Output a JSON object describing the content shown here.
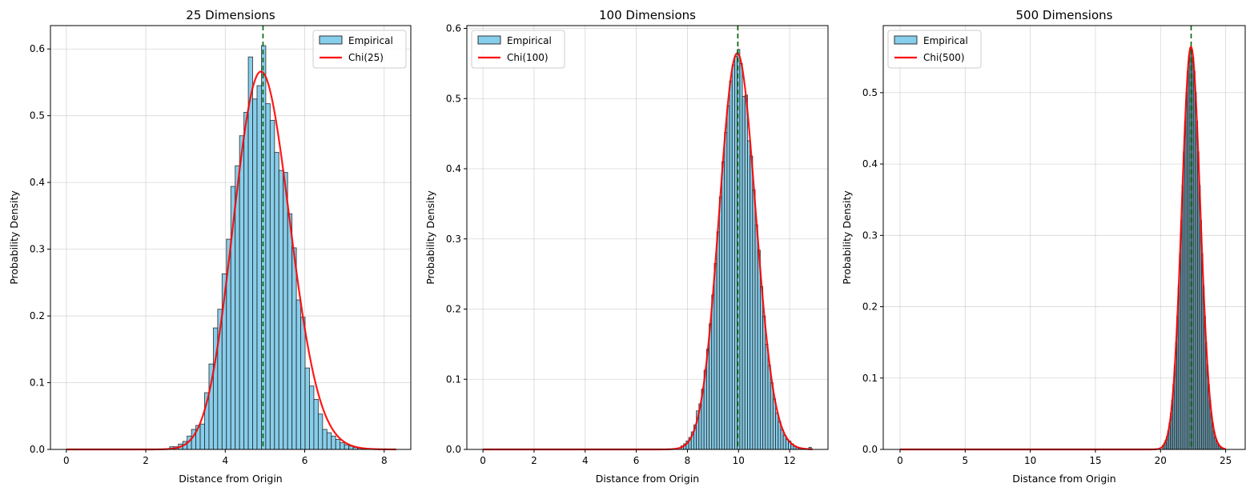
{
  "chart_data": [
    {
      "type": "bar",
      "title": "25 Dimensions",
      "xlabel": "Distance from Origin",
      "ylabel": "Probability Density",
      "xlim": [
        -0.4,
        8.67
      ],
      "ylim": [
        0,
        0.635
      ],
      "xticks": [
        0,
        2,
        4,
        6,
        8
      ],
      "yticks": [
        0.0,
        0.1,
        0.2,
        0.3,
        0.4,
        0.5,
        0.6
      ],
      "grid": true,
      "legend": {
        "placement": "top-right",
        "entries": [
          "Empirical",
          "Chi(25)"
        ]
      },
      "histogram": {
        "bin_start": 2.6,
        "bin_width": 0.11,
        "values": [
          0.004,
          0.004,
          0.008,
          0.012,
          0.02,
          0.03,
          0.036,
          0.038,
          0.085,
          0.128,
          0.182,
          0.21,
          0.263,
          0.315,
          0.394,
          0.425,
          0.47,
          0.505,
          0.588,
          0.525,
          0.545,
          0.605,
          0.518,
          0.493,
          0.445,
          0.418,
          0.415,
          0.353,
          0.302,
          0.224,
          0.198,
          0.122,
          0.095,
          0.075,
          0.053,
          0.03,
          0.025,
          0.02,
          0.015,
          0.01,
          0.007,
          0.005,
          0.003,
          0.002,
          0.001
        ]
      },
      "curve": {
        "name": "Chi(25)",
        "df": 25,
        "x_range": [
          0,
          8.3
        ]
      },
      "mean_line": 4.95,
      "colors": {
        "bar": "#87CEEB",
        "curve": "#FF0000",
        "mean_line": "#006400"
      }
    },
    {
      "type": "bar",
      "title": "100 Dimensions",
      "xlabel": "Distance from Origin",
      "ylabel": "Probability Density",
      "xlim": [
        -0.63,
        13.5
      ],
      "ylim": [
        0,
        0.604
      ],
      "xticks": [
        0,
        2,
        4,
        6,
        8,
        10,
        12
      ],
      "yticks": [
        0.0,
        0.1,
        0.2,
        0.3,
        0.4,
        0.5,
        0.6
      ],
      "grid": true,
      "legend": {
        "placement": "top-left",
        "entries": [
          "Empirical",
          "Chi(100)"
        ]
      },
      "histogram": {
        "bin_start": 7.75,
        "bin_width": 0.1,
        "values": [
          0.005,
          0.008,
          0.012,
          0.017,
          0.025,
          0.035,
          0.055,
          0.065,
          0.086,
          0.113,
          0.143,
          0.179,
          0.22,
          0.265,
          0.31,
          0.36,
          0.41,
          0.452,
          0.49,
          0.525,
          0.548,
          0.56,
          0.57,
          0.55,
          0.503,
          0.505,
          0.44,
          0.418,
          0.37,
          0.32,
          0.284,
          0.232,
          0.19,
          0.15,
          0.12,
          0.095,
          0.072,
          0.052,
          0.04,
          0.028,
          0.02,
          0.014,
          0.012,
          0.008,
          0.005,
          0.003,
          0.002,
          0.001,
          0.001,
          0.0,
          0.003
        ]
      },
      "curve": {
        "name": "Chi(100)",
        "df": 100,
        "x_range": [
          0,
          12.9
        ]
      },
      "mean_line": 9.97,
      "colors": {
        "bar": "#87CEEB",
        "curve": "#FF0000",
        "mean_line": "#006400"
      }
    },
    {
      "type": "bar",
      "title": "500 Dimensions",
      "xlabel": "Distance from Origin",
      "ylabel": "Probability Density",
      "xlim": [
        -1.29,
        26.5
      ],
      "ylim": [
        0,
        0.594
      ],
      "xticks": [
        0,
        5,
        10,
        15,
        20,
        25
      ],
      "yticks": [
        0.0,
        0.1,
        0.2,
        0.3,
        0.4,
        0.5
      ],
      "grid": true,
      "legend": {
        "placement": "top-left",
        "entries": [
          "Empirical",
          "Chi(500)"
        ]
      },
      "histogram": {
        "bin_start": 20.15,
        "bin_width": 0.1,
        "values": [
          0.006,
          0.009,
          0.013,
          0.018,
          0.026,
          0.037,
          0.051,
          0.069,
          0.091,
          0.118,
          0.15,
          0.187,
          0.229,
          0.274,
          0.321,
          0.37,
          0.417,
          0.46,
          0.5,
          0.53,
          0.552,
          0.563,
          0.56,
          0.55,
          0.53,
          0.5,
          0.46,
          0.417,
          0.37,
          0.321,
          0.274,
          0.229,
          0.187,
          0.15,
          0.118,
          0.091,
          0.069,
          0.051,
          0.037,
          0.026,
          0.018,
          0.013,
          0.009,
          0.006,
          0.004,
          0.002
        ]
      },
      "curve": {
        "name": "Chi(500)",
        "df": 500,
        "x_range": [
          0,
          25.0
        ]
      },
      "mean_line": 22.35,
      "colors": {
        "bar": "#87CEEB",
        "curve": "#FF0000",
        "mean_line": "#006400"
      }
    }
  ]
}
